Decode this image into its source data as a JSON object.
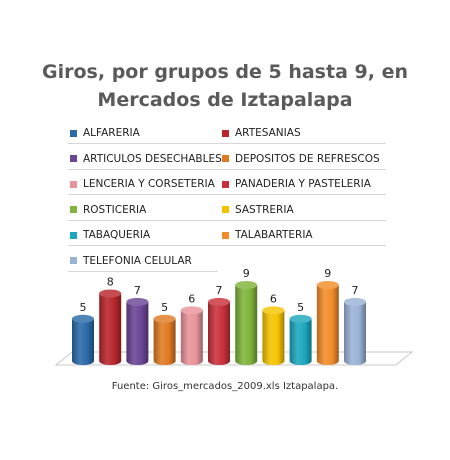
{
  "chart_data": {
    "type": "bar",
    "title": "Giros, por grupos de 5 hasta 9, en Mercados de Iztapalapa",
    "title_lines": [
      "Giros, por grupos de 5 hasta 9, en",
      "Mercados de Iztapalapa"
    ],
    "source": "Fuente: Giros_mercados_2009.xls Iztapalapa.",
    "legend_position": "top",
    "grid": false,
    "series": [
      {
        "name": "ALFARERIA",
        "value": 5,
        "color": "#2a6aa8"
      },
      {
        "name": "ARTESANIAS",
        "value": 8,
        "color": "#b8262c"
      },
      {
        "name": "ARTICULOS DESECHABLES",
        "value": 7,
        "color": "#6b4596"
      },
      {
        "name": "DEPOSITOS DE REFRESCOS",
        "value": 5,
        "color": "#e07a22"
      },
      {
        "name": "LENCERIA Y CORSETERIA",
        "value": 6,
        "color": "#e8939a"
      },
      {
        "name": "PANADERIA Y PASTELERIA",
        "value": 7,
        "color": "#c9303a"
      },
      {
        "name": "ROSTICERIA",
        "value": 9,
        "color": "#7fb33a"
      },
      {
        "name": "SASTRERIA",
        "value": 6,
        "color": "#f4c300"
      },
      {
        "name": "TABAQUERIA",
        "value": 5,
        "color": "#1ba7bd"
      },
      {
        "name": "TALABARTERIA",
        "value": 9,
        "color": "#f28c2a"
      },
      {
        "name": "TELEFONIA CELULAR",
        "value": 7,
        "color": "#9ab2d6"
      }
    ]
  }
}
